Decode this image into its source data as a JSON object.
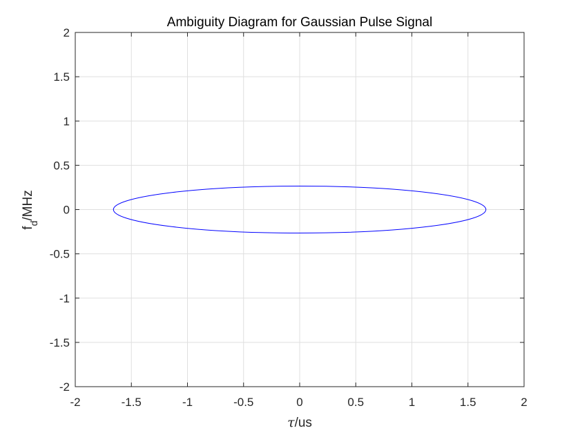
{
  "chart_data": {
    "type": "line",
    "title": "Ambiguity Diagram for Gaussian Pulse Signal",
    "xlabel": {
      "symbol": "τ",
      "unit": "/us"
    },
    "ylabel": {
      "base": "f",
      "subscript": "d",
      "unit": "/MHz"
    },
    "xlim": [
      -2,
      2
    ],
    "ylim": [
      -2,
      2
    ],
    "xticks": [
      -2,
      -1.5,
      -1,
      -0.5,
      0,
      0.5,
      1,
      1.5,
      2
    ],
    "xtick_labels": [
      "-2",
      "-1.5",
      "-1",
      "-0.5",
      "0",
      "0.5",
      "1",
      "1.5",
      "2"
    ],
    "yticks": [
      -2,
      -1.5,
      -1,
      -0.5,
      0,
      0.5,
      1,
      1.5,
      2
    ],
    "ytick_labels": [
      "-2",
      "-1.5",
      "-1",
      "-0.5",
      "0",
      "0.5",
      "1",
      "1.5",
      "2"
    ],
    "grid": true,
    "series": [
      {
        "shape": "ellipse",
        "color": "#0000ff",
        "center": [
          0,
          0
        ],
        "x_semi_axis": 1.66,
        "y_semi_axis": 0.265
      }
    ]
  }
}
